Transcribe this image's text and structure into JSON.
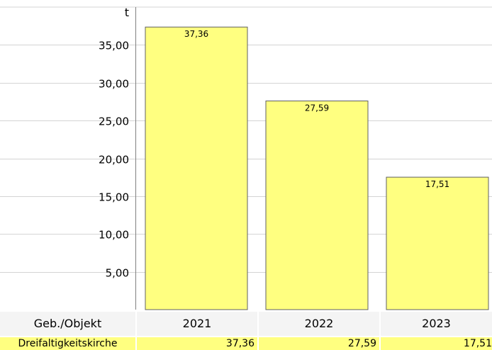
{
  "chart_data": {
    "type": "bar",
    "unit": "t",
    "categories": [
      "2021",
      "2022",
      "2023"
    ],
    "series": [
      {
        "name": "Dreifaltigkeitskirche",
        "values": [
          37.36,
          27.59,
          17.51
        ],
        "labels": [
          "37,36",
          "27,59",
          "17,51"
        ]
      }
    ],
    "ylim": [
      0,
      40
    ],
    "yticks": [
      5,
      10,
      15,
      20,
      25,
      30,
      35
    ],
    "ytick_labels": [
      "5,00",
      "10,00",
      "15,00",
      "20,00",
      "25,00",
      "30,00",
      "35,00"
    ],
    "grid": true,
    "bar_color": "#ffff80"
  },
  "table": {
    "header_label": "Geb./Objekt",
    "columns": [
      "2021",
      "2022",
      "2023"
    ],
    "row": {
      "name": "Dreifaltigkeitskirche",
      "values": [
        "37,36",
        "27,59",
        "17,51"
      ]
    }
  }
}
